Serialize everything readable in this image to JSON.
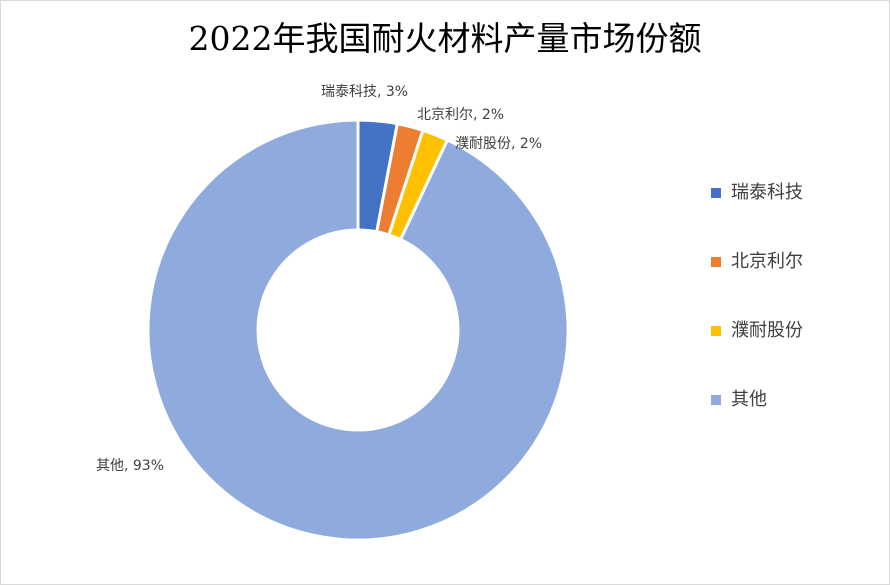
{
  "chart_data": {
    "type": "pie",
    "variant": "doughnut",
    "title": "2022年我国耐火材料产量市场份额",
    "categories": [
      "瑞泰科技",
      "北京利尔",
      "濮耐股份",
      "其他"
    ],
    "values": [
      3,
      2,
      2,
      93
    ],
    "value_unit": "%",
    "colors": [
      "#4472C4",
      "#ED7D31",
      "#FFC000",
      "#8FAADC"
    ],
    "data_labels": [
      "瑞泰科技, 3%",
      "北京利尔, 2%",
      "濮耐股份, 2%",
      "其他, 93%"
    ],
    "legend_position": "right",
    "start_angle": "top",
    "direction": "clockwise"
  }
}
